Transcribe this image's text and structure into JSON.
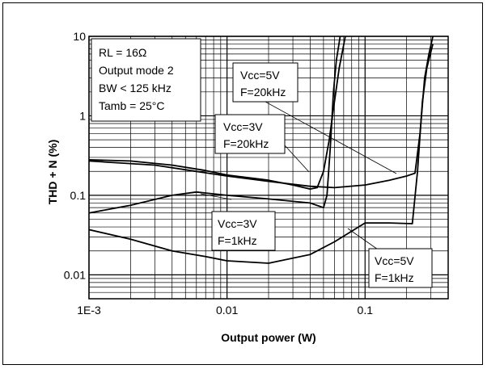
{
  "chart_data": {
    "type": "line",
    "xlabel": "Output power (W)",
    "ylabel": "THD + N (%)",
    "xscale": "log",
    "yscale": "log",
    "xlim": [
      0.001,
      0.4
    ],
    "ylim": [
      0.005,
      10
    ],
    "x_ticks": [
      "1E-3",
      "0.01",
      "0.1"
    ],
    "y_ticks": [
      "10",
      "1",
      "0.1",
      "0.01"
    ],
    "grid": true,
    "conditions_box": {
      "lines": [
        "RL = 16Ω",
        "Output mode 2",
        "BW < 125 kHz",
        "Tamb = 25°C"
      ]
    },
    "series": [
      {
        "name": "Vcc=3V F=20kHz",
        "label_lines": [
          "Vcc=3V",
          "F=20kHz"
        ],
        "points": [
          [
            0.001,
            0.28
          ],
          [
            0.002,
            0.27
          ],
          [
            0.004,
            0.24
          ],
          [
            0.007,
            0.205
          ],
          [
            0.01,
            0.18
          ],
          [
            0.02,
            0.155
          ],
          [
            0.03,
            0.135
          ],
          [
            0.04,
            0.12
          ],
          [
            0.045,
            0.125
          ],
          [
            0.05,
            0.2
          ],
          [
            0.055,
            0.5
          ],
          [
            0.06,
            1.5
          ],
          [
            0.065,
            4
          ],
          [
            0.072,
            10
          ]
        ]
      },
      {
        "name": "Vcc=5V F=20kHz",
        "label_lines": [
          "Vcc=5V",
          "F=20kHz"
        ],
        "points": [
          [
            0.001,
            0.27
          ],
          [
            0.003,
            0.24
          ],
          [
            0.006,
            0.2
          ],
          [
            0.01,
            0.175
          ],
          [
            0.02,
            0.15
          ],
          [
            0.04,
            0.13
          ],
          [
            0.06,
            0.125
          ],
          [
            0.1,
            0.135
          ],
          [
            0.15,
            0.155
          ],
          [
            0.2,
            0.175
          ],
          [
            0.23,
            0.19
          ],
          [
            0.25,
            0.6
          ],
          [
            0.27,
            3
          ],
          [
            0.29,
            6
          ],
          [
            0.31,
            10
          ]
        ]
      },
      {
        "name": "Vcc=3V F=1kHz",
        "label_lines": [
          "Vcc=3V",
          "F=1kHz"
        ],
        "points": [
          [
            0.001,
            0.06
          ],
          [
            0.002,
            0.075
          ],
          [
            0.004,
            0.1
          ],
          [
            0.006,
            0.11
          ],
          [
            0.01,
            0.1
          ],
          [
            0.02,
            0.09
          ],
          [
            0.04,
            0.08
          ],
          [
            0.05,
            0.07
          ],
          [
            0.053,
            0.1
          ],
          [
            0.056,
            0.4
          ],
          [
            0.059,
            2
          ],
          [
            0.062,
            5
          ],
          [
            0.066,
            10
          ]
        ]
      },
      {
        "name": "Vcc=5V F=1kHz",
        "label_lines": [
          "Vcc=5V",
          "F=1kHz"
        ],
        "points": [
          [
            0.001,
            0.037
          ],
          [
            0.002,
            0.028
          ],
          [
            0.004,
            0.02
          ],
          [
            0.007,
            0.017
          ],
          [
            0.01,
            0.015
          ],
          [
            0.02,
            0.014
          ],
          [
            0.04,
            0.018
          ],
          [
            0.06,
            0.026
          ],
          [
            0.1,
            0.045
          ],
          [
            0.15,
            0.045
          ],
          [
            0.22,
            0.044
          ],
          [
            0.24,
            0.2
          ],
          [
            0.26,
            1.5
          ],
          [
            0.28,
            4
          ],
          [
            0.31,
            8
          ]
        ]
      }
    ]
  }
}
